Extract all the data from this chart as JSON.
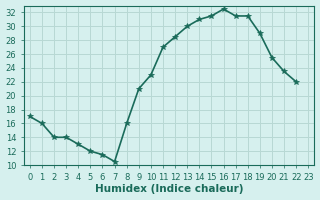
{
  "x": [
    0,
    1,
    2,
    3,
    4,
    5,
    6,
    7,
    8,
    9,
    10,
    11,
    12,
    13,
    14,
    15,
    16,
    17,
    18,
    19,
    20,
    21,
    22
  ],
  "y": [
    17,
    16,
    14,
    14,
    13,
    12,
    11.5,
    10.5,
    16,
    21,
    23,
    27,
    28.5,
    30,
    31,
    31.5,
    32.5,
    31.5,
    31.5,
    29,
    25.5,
    23.5,
    22
  ],
  "line_color": "#1a6b5a",
  "marker": "*",
  "marker_size": 4,
  "bg_color": "#d6f0ee",
  "grid_color": "#b8d8d4",
  "xlabel": "Humidex (Indice chaleur)",
  "ylabel": "",
  "ylim": [
    10,
    33
  ],
  "xlim": [
    -0.5,
    23.5
  ],
  "yticks": [
    10,
    12,
    14,
    16,
    18,
    20,
    22,
    24,
    26,
    28,
    30,
    32
  ],
  "xticks": [
    0,
    1,
    2,
    3,
    4,
    5,
    6,
    7,
    8,
    9,
    10,
    11,
    12,
    13,
    14,
    15,
    16,
    17,
    18,
    19,
    20,
    21,
    22,
    23
  ],
  "tick_fontsize": 6,
  "xlabel_fontsize": 7.5
}
